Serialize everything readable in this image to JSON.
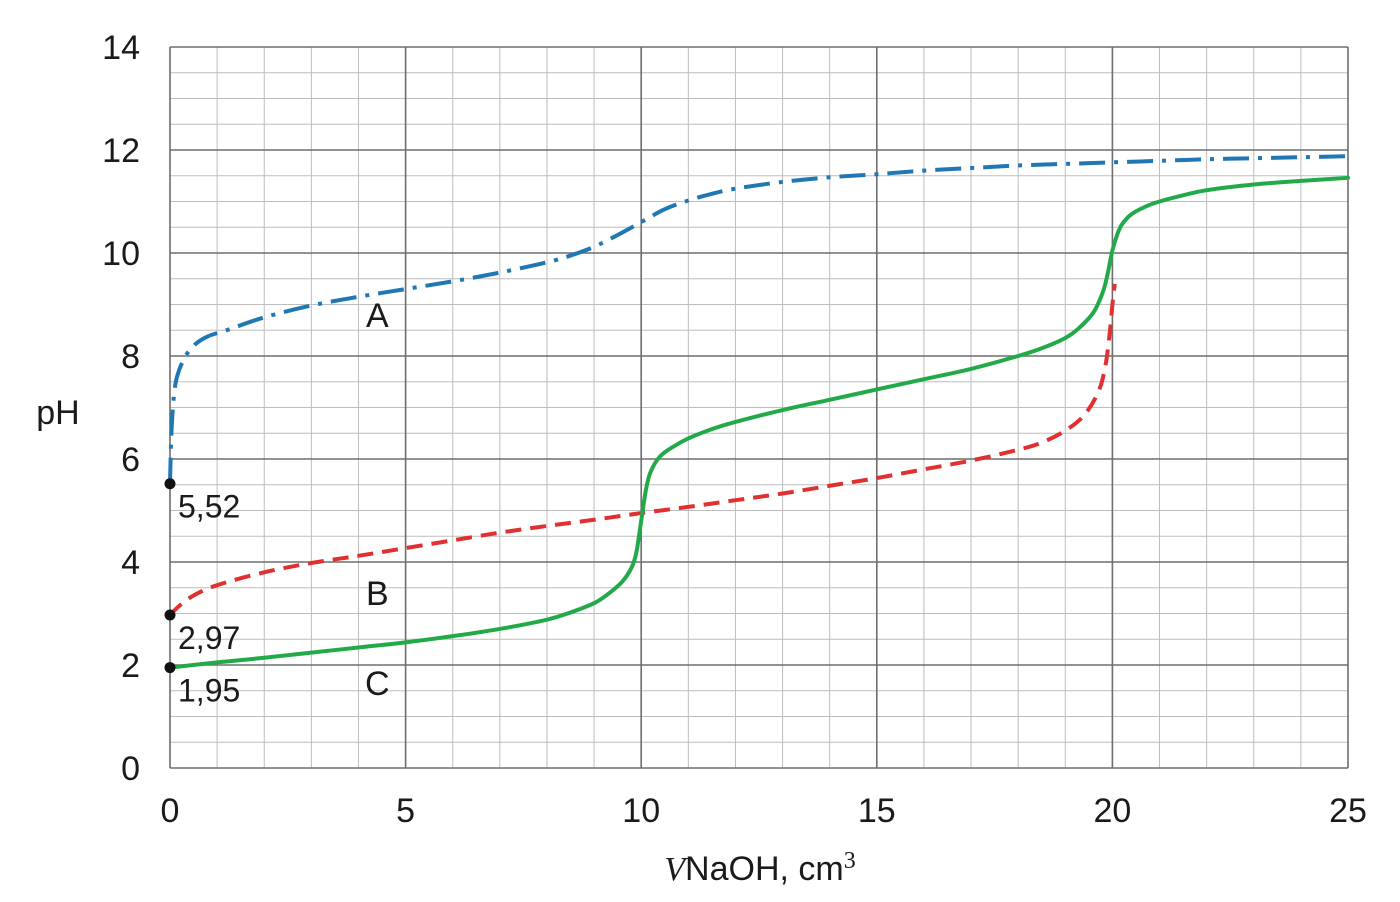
{
  "chart_data": {
    "type": "line",
    "xlabel_var": "V",
    "xlabel_text": "NaOH, cm",
    "xlabel_sup": "3",
    "ylabel": "pH",
    "xlim": [
      0,
      25
    ],
    "ylim": [
      0,
      14
    ],
    "x_major_ticks": [
      0,
      5,
      10,
      15,
      20,
      25
    ],
    "x_tick_labels": [
      "0",
      "5",
      "10",
      "15",
      "20",
      "25"
    ],
    "y_major_ticks": [
      0,
      2,
      4,
      6,
      8,
      10,
      12,
      14
    ],
    "y_tick_labels": [
      "0",
      "2",
      "4",
      "6",
      "8",
      "10",
      "12",
      "14"
    ],
    "x_minor_step": 1,
    "y_minor_step": 0.5,
    "grid": true,
    "series": [
      {
        "name": "A",
        "color": "#1f77b4",
        "style": "dash-dot",
        "x": [
          0,
          0.03,
          0.08,
          0.15,
          0.3,
          0.5,
          0.8,
          1.2,
          2,
          3,
          4,
          5,
          6,
          7,
          8,
          8.5,
          9,
          9.5,
          10,
          10.5,
          11,
          11.5,
          12,
          13,
          14,
          15,
          16,
          17,
          18,
          19,
          20,
          21,
          22,
          23,
          24,
          25
        ],
        "y": [
          5.52,
          6.5,
          7.2,
          7.6,
          7.95,
          8.2,
          8.38,
          8.5,
          8.75,
          8.98,
          9.15,
          9.3,
          9.45,
          9.62,
          9.82,
          9.95,
          10.12,
          10.35,
          10.6,
          10.85,
          11.02,
          11.15,
          11.25,
          11.38,
          11.47,
          11.53,
          11.6,
          11.65,
          11.7,
          11.73,
          11.76,
          11.79,
          11.82,
          11.84,
          11.86,
          11.88
        ]
      },
      {
        "name": "B",
        "color": "#e03030",
        "style": "dashed",
        "x": [
          0,
          0.2,
          0.5,
          1,
          2,
          3,
          4,
          5,
          6,
          7,
          8,
          9,
          10,
          11,
          12,
          13,
          14,
          15,
          16,
          17,
          18,
          18.5,
          19,
          19.4,
          19.7,
          19.85,
          19.95,
          20,
          20.05
        ],
        "y": [
          2.97,
          3.15,
          3.35,
          3.55,
          3.8,
          3.98,
          4.12,
          4.27,
          4.42,
          4.57,
          4.7,
          4.82,
          4.95,
          5.07,
          5.2,
          5.33,
          5.48,
          5.63,
          5.8,
          5.97,
          6.18,
          6.32,
          6.55,
          6.85,
          7.3,
          7.8,
          8.5,
          9.0,
          9.4
        ]
      },
      {
        "name": "C",
        "color": "#22aa4a",
        "style": "solid",
        "x": [
          0,
          1,
          2,
          3,
          4,
          5,
          6,
          7,
          8,
          8.5,
          9,
          9.3,
          9.6,
          9.8,
          9.9,
          10,
          10.1,
          10.2,
          10.4,
          10.7,
          11,
          11.5,
          12,
          13,
          14,
          15,
          16,
          17,
          18,
          18.5,
          19,
          19.3,
          19.6,
          19.8,
          19.9,
          20,
          20.1,
          20.2,
          20.4,
          20.7,
          21,
          21.5,
          22,
          23,
          24,
          25
        ],
        "y": [
          1.95,
          2.05,
          2.14,
          2.24,
          2.34,
          2.44,
          2.56,
          2.7,
          2.88,
          3.02,
          3.2,
          3.38,
          3.62,
          3.9,
          4.2,
          4.8,
          5.4,
          5.75,
          6.05,
          6.25,
          6.4,
          6.58,
          6.72,
          6.95,
          7.15,
          7.35,
          7.55,
          7.75,
          8.0,
          8.15,
          8.35,
          8.55,
          8.85,
          9.25,
          9.6,
          10.05,
          10.35,
          10.55,
          10.75,
          10.9,
          11.0,
          11.12,
          11.22,
          11.33,
          11.4,
          11.46
        ]
      }
    ],
    "curve_labels": [
      {
        "text": "A",
        "x": 4.4,
        "y": 8.8
      },
      {
        "text": "B",
        "x": 4.4,
        "y": 3.4
      },
      {
        "text": "C",
        "x": 4.4,
        "y": 1.65
      }
    ],
    "initial_points": [
      {
        "x": 0,
        "y": 5.52,
        "label": "5,52"
      },
      {
        "x": 0,
        "y": 2.97,
        "label": "2,97"
      },
      {
        "x": 0,
        "y": 1.95,
        "label": "1,95"
      }
    ]
  }
}
